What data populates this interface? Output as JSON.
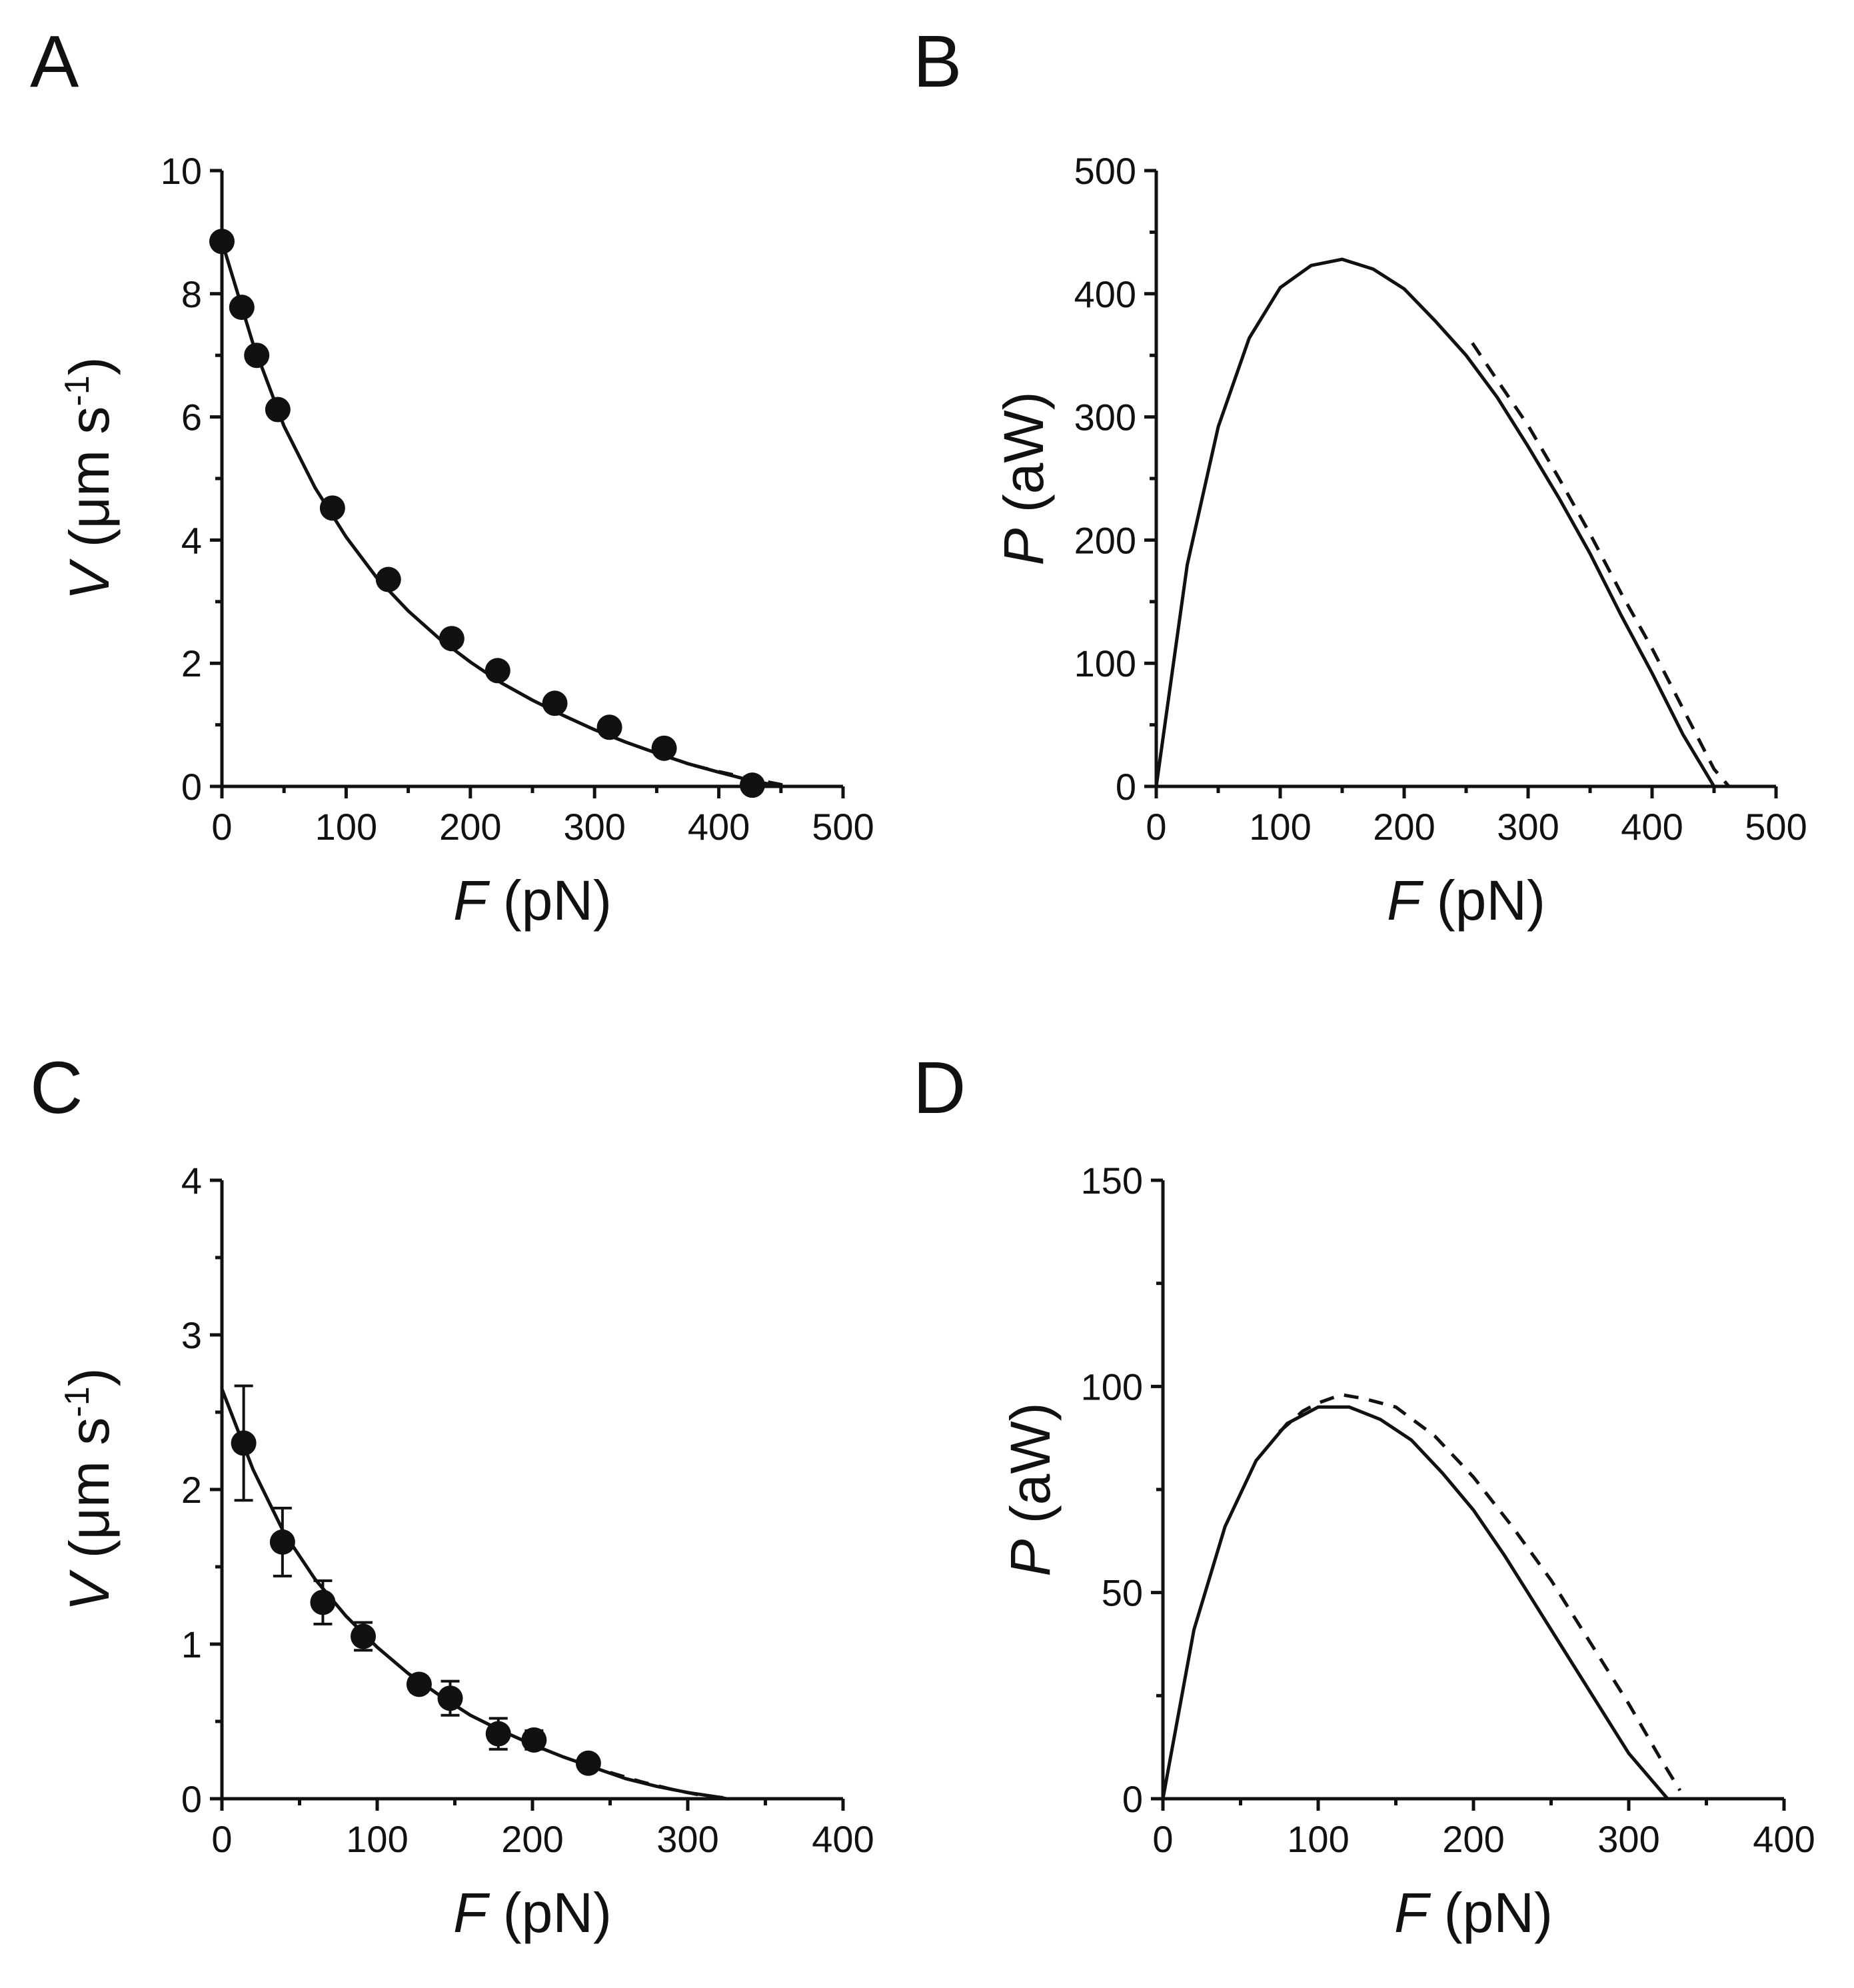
{
  "chart_data": [
    {
      "type": "scatter",
      "panel": "A",
      "xlabel_var": "F",
      "xlabel_unit": " (pN)",
      "ylabel_var": "V",
      "ylabel_unit_pre": " (μm s",
      "ylabel_unit_sup": "-1",
      "ylabel_unit_post": ")",
      "xlim": [
        0,
        500
      ],
      "ylim": [
        0,
        10
      ],
      "xticks": [
        0,
        100,
        200,
        300,
        400,
        500
      ],
      "yticks": [
        0,
        2,
        4,
        6,
        8,
        10
      ],
      "points": [
        {
          "x": 0,
          "y": 8.85
        },
        {
          "x": 16,
          "y": 7.78
        },
        {
          "x": 28,
          "y": 7.0
        },
        {
          "x": 45,
          "y": 6.12
        },
        {
          "x": 89,
          "y": 4.52
        },
        {
          "x": 134,
          "y": 3.36
        },
        {
          "x": 185,
          "y": 2.4
        },
        {
          "x": 222,
          "y": 1.88
        },
        {
          "x": 268,
          "y": 1.35
        },
        {
          "x": 312,
          "y": 0.96
        },
        {
          "x": 356,
          "y": 0.62
        },
        {
          "x": 427,
          "y": 0.02
        }
      ],
      "series": [
        {
          "name": "fit",
          "style": "solid",
          "x": [
            0,
            25,
            50,
            75,
            100,
            125,
            150,
            175,
            200,
            225,
            250,
            275,
            300,
            325,
            350,
            375,
            400,
            425,
            450
          ],
          "y": [
            8.85,
            7.19,
            5.85,
            4.85,
            4.05,
            3.38,
            2.85,
            2.4,
            2.02,
            1.68,
            1.4,
            1.15,
            0.92,
            0.72,
            0.54,
            0.37,
            0.23,
            0.1,
            0.0
          ]
        },
        {
          "name": "fit-alt",
          "style": "dashed",
          "x": [
            380,
            400,
            425,
            450,
            455
          ],
          "y": [
            0.34,
            0.24,
            0.13,
            0.03,
            0.0
          ]
        }
      ]
    },
    {
      "type": "line",
      "panel": "B",
      "xlabel_var": "F",
      "xlabel_unit": " (pN)",
      "ylabel_var": "P",
      "ylabel_unit": " (aW)",
      "xlim": [
        0,
        500
      ],
      "ylim": [
        0,
        500
      ],
      "xticks": [
        0,
        100,
        200,
        300,
        400,
        500
      ],
      "yticks": [
        0,
        100,
        200,
        300,
        400,
        500
      ],
      "series": [
        {
          "name": "solid",
          "style": "solid",
          "x": [
            0,
            25,
            50,
            75,
            100,
            125,
            150,
            175,
            200,
            225,
            250,
            275,
            300,
            325,
            350,
            375,
            400,
            425,
            450
          ],
          "y": [
            0,
            180,
            292,
            364,
            405,
            423,
            428,
            420,
            404,
            378,
            350,
            316,
            276,
            234,
            189,
            139,
            92,
            42,
            0
          ]
        },
        {
          "name": "dashed",
          "style": "dashed",
          "x": [
            255,
            275,
            300,
            325,
            350,
            375,
            400,
            425,
            450,
            462
          ],
          "y": [
            360,
            330,
            293,
            250,
            205,
            157,
            112,
            63,
            14,
            0
          ]
        }
      ]
    },
    {
      "type": "scatter",
      "panel": "C",
      "xlabel_var": "F",
      "xlabel_unit": " (pN)",
      "ylabel_var": "V",
      "ylabel_unit_pre": " (μm s",
      "ylabel_unit_sup": "-1",
      "ylabel_unit_post": ")",
      "xlim": [
        0,
        400
      ],
      "ylim": [
        0,
        4
      ],
      "xticks": [
        0,
        100,
        200,
        300,
        400
      ],
      "yticks": [
        0,
        1,
        2,
        3,
        4
      ],
      "points": [
        {
          "x": 14,
          "y": 2.3,
          "err": 0.37
        },
        {
          "x": 39,
          "y": 1.66,
          "err": 0.22
        },
        {
          "x": 65,
          "y": 1.27,
          "err": 0.14
        },
        {
          "x": 91,
          "y": 1.05,
          "err": 0.09
        },
        {
          "x": 127,
          "y": 0.74,
          "err": 0.05
        },
        {
          "x": 147,
          "y": 0.65,
          "err": 0.11
        },
        {
          "x": 178,
          "y": 0.42,
          "err": 0.1
        },
        {
          "x": 201,
          "y": 0.38,
          "err": 0.06
        },
        {
          "x": 236,
          "y": 0.23,
          "err": 0.04
        }
      ],
      "series": [
        {
          "name": "fit",
          "style": "solid",
          "x": [
            0,
            20,
            40,
            60,
            80,
            100,
            120,
            140,
            160,
            180,
            200,
            220,
            240,
            260,
            280,
            300,
            320,
            325
          ],
          "y": [
            2.65,
            2.13,
            1.72,
            1.42,
            1.18,
            0.98,
            0.81,
            0.67,
            0.54,
            0.44,
            0.35,
            0.27,
            0.2,
            0.13,
            0.08,
            0.04,
            0.01,
            0.0
          ]
        },
        {
          "name": "fit-alt",
          "style": "dashed",
          "x": [
            250,
            270,
            290,
            310,
            330
          ],
          "y": [
            0.17,
            0.11,
            0.06,
            0.02,
            0.0
          ]
        }
      ]
    },
    {
      "type": "line",
      "panel": "D",
      "xlabel_var": "F",
      "xlabel_unit": " (pN)",
      "ylabel_var": "P",
      "ylabel_unit": " (aW)",
      "xlim": [
        0,
        400
      ],
      "ylim": [
        0,
        150
      ],
      "xticks": [
        0,
        100,
        200,
        300,
        400
      ],
      "yticks": [
        0,
        50,
        100,
        150
      ],
      "series": [
        {
          "name": "solid",
          "style": "solid",
          "x": [
            0,
            20,
            40,
            60,
            80,
            100,
            120,
            140,
            160,
            180,
            200,
            220,
            240,
            260,
            280,
            300,
            325
          ],
          "y": [
            0,
            41,
            66,
            82,
            91,
            95,
            95,
            92,
            87,
            79,
            70,
            59,
            47,
            35,
            23,
            11,
            0
          ]
        },
        {
          "name": "dashed",
          "style": "dashed",
          "x": [
            75,
            90,
            100,
            115,
            130,
            150,
            175,
            200,
            225,
            250,
            275,
            300,
            320,
            333
          ],
          "y": [
            89,
            94,
            96,
            98,
            97,
            95,
            88,
            78,
            66,
            53,
            38,
            23,
            10,
            2
          ]
        }
      ]
    }
  ]
}
